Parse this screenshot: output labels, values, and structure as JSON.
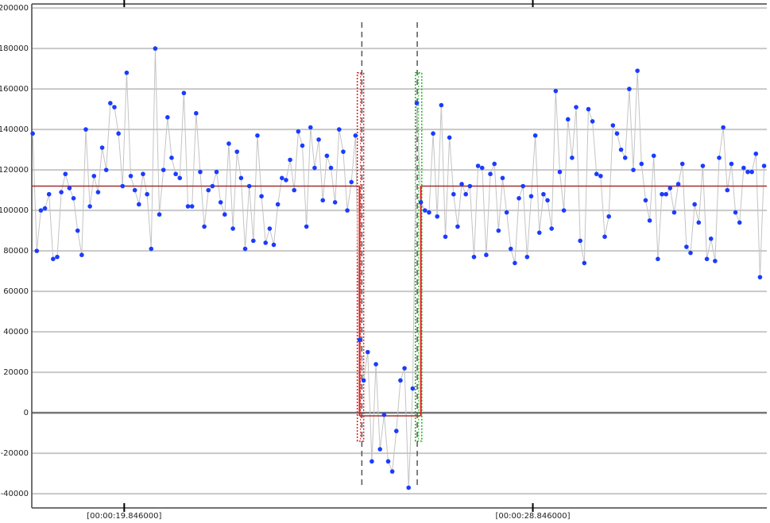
{
  "chart_data": {
    "type": "line",
    "x": [
      17.83,
      17.92,
      18.01,
      18.1,
      18.19,
      18.28,
      18.37,
      18.46,
      18.55,
      18.64,
      18.73,
      18.82,
      18.91,
      19,
      19.09,
      19.18,
      19.27,
      19.36,
      19.45,
      19.54,
      19.63,
      19.72,
      19.81,
      19.9,
      19.99,
      20.08,
      20.17,
      20.26,
      20.35,
      20.44,
      20.53,
      20.62,
      20.71,
      20.8,
      20.89,
      20.98,
      21.07,
      21.16,
      21.25,
      21.34,
      21.43,
      21.52,
      21.61,
      21.7,
      21.79,
      21.88,
      21.97,
      22.06,
      22.15,
      22.24,
      22.33,
      22.42,
      22.51,
      22.6,
      22.69,
      22.78,
      22.87,
      22.96,
      23.05,
      23.14,
      23.23,
      23.32,
      23.41,
      23.5,
      23.59,
      23.68,
      23.77,
      23.86,
      23.95,
      24.04,
      24.13,
      24.22,
      24.31,
      24.4,
      24.49,
      24.58,
      24.67,
      24.76,
      24.85,
      24.94,
      25.03,
      25.12,
      25.21,
      25.3,
      25.39,
      25.48,
      25.57,
      25.66,
      25.75,
      25.84,
      25.93,
      26.02,
      26.11,
      26.2,
      26.29,
      26.38,
      26.47,
      26.56,
      26.65,
      26.74,
      26.83,
      26.92,
      27.01,
      27.1,
      27.19,
      27.28,
      27.37,
      27.46,
      27.55,
      27.64,
      27.73,
      27.82,
      27.91,
      28,
      28.09,
      28.18,
      28.27,
      28.36,
      28.45,
      28.54,
      28.63,
      28.72,
      28.81,
      28.9,
      28.99,
      29.08,
      29.17,
      29.26,
      29.35,
      29.44,
      29.53,
      29.62,
      29.71,
      29.8,
      29.89,
      29.98,
      30.07,
      30.16,
      30.25,
      30.34,
      30.43,
      30.52,
      30.61,
      30.7,
      30.79,
      30.88,
      30.97,
      31.06,
      31.15,
      31.24,
      31.33,
      31.42,
      31.51,
      31.6,
      31.69,
      31.78,
      31.87,
      31.96,
      32.05,
      32.14,
      32.23,
      32.32,
      32.41,
      32.5,
      32.59,
      32.68,
      32.77,
      32.86,
      32.95,
      33.04,
      33.13,
      33.22,
      33.31,
      33.4,
      33.49,
      33.58,
      33.67,
      33.76,
      33.85,
      33.94
    ],
    "series": [
      {
        "color": "#1a3cff",
        "line_color": "#c4c4c4",
        "values": [
          138000,
          80000,
          100000,
          101000,
          108000,
          76000,
          77000,
          109000,
          118000,
          111000,
          106000,
          90000,
          78000,
          140000,
          102000,
          117000,
          109000,
          131000,
          120000,
          153000,
          151000,
          138000,
          112000,
          168000,
          117000,
          110000,
          103000,
          118000,
          108000,
          81000,
          180000,
          98000,
          120000,
          146000,
          126000,
          118000,
          116000,
          158000,
          102000,
          102000,
          148000,
          119000,
          92000,
          110000,
          112000,
          119000,
          104000,
          98000,
          133000,
          91000,
          129000,
          116000,
          81000,
          112000,
          85000,
          137000,
          107000,
          84000,
          91000,
          83000,
          103000,
          116000,
          115000,
          125000,
          110000,
          139000,
          132000,
          92000,
          141000,
          121000,
          135000,
          105000,
          127000,
          121000,
          104000,
          140000,
          129000,
          100000,
          114000,
          137000,
          36000,
          16000,
          30000,
          -24000,
          24000,
          -18000,
          -1000,
          -24000,
          -29000,
          -9000,
          16000,
          22000,
          -37000,
          12000,
          153000,
          104000,
          100000,
          99000,
          138000,
          97000,
          152000,
          87000,
          136000,
          108000,
          92000,
          113000,
          108000,
          112000,
          77000,
          122000,
          121000,
          78000,
          118000,
          123000,
          90000,
          116000,
          99000,
          81000,
          74000,
          106000,
          112000,
          77000,
          107000,
          137000,
          89000,
          108000,
          105000,
          91000,
          159000,
          119000,
          100000,
          145000,
          126000,
          151000,
          85000,
          74000,
          150000,
          144000,
          118000,
          117000,
          87000,
          97000,
          142000,
          138000,
          130000,
          126000,
          160000,
          120000,
          169000,
          123000,
          105000,
          95000,
          127000,
          76000,
          108000,
          108000,
          111000,
          99000,
          113000,
          123000,
          82000,
          79000,
          103000,
          94000,
          122000,
          76000,
          86000,
          75000,
          126000,
          141000,
          110000,
          123000,
          99000,
          94000,
          121000,
          119000,
          119000,
          128000,
          67000,
          122000
        ]
      }
    ],
    "levels": [
      {
        "start": 17.81,
        "end": 25.03,
        "value": 112000
      },
      {
        "start": 25.03,
        "end": 26.38,
        "value": -1500
      },
      {
        "start": 26.38,
        "end": 34.0,
        "value": 112000
      }
    ],
    "level_color": "#a03030",
    "step_color": "#e02020",
    "markers": [
      25.08,
      26.3
    ],
    "selections": [
      {
        "x": 25.05,
        "color": "#d02020",
        "range": [
          -14000,
          168000
        ]
      },
      {
        "x": 26.33,
        "color": "#20b020",
        "range": [
          -14000,
          168000
        ]
      }
    ],
    "xlim": [
      17.81,
      34.0
    ],
    "xticks": [
      {
        "value": 19.846,
        "label": "[00:00:19.846000]"
      },
      {
        "value": 28.846,
        "label": "[00:00:28.846000]"
      }
    ],
    "ylim": [
      -47000,
      202000
    ],
    "yticks": [
      -40000,
      -20000,
      0,
      20000,
      40000,
      60000,
      80000,
      100000,
      120000,
      140000,
      160000,
      180000,
      200000
    ],
    "grid": true
  }
}
